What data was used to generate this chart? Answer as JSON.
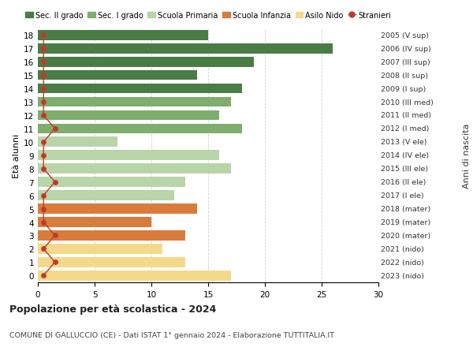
{
  "ages": [
    18,
    17,
    16,
    15,
    14,
    13,
    12,
    11,
    10,
    9,
    8,
    7,
    6,
    5,
    4,
    3,
    2,
    1,
    0
  ],
  "bar_values": [
    15,
    26,
    19,
    14,
    18,
    17,
    16,
    18,
    7,
    16,
    17,
    13,
    12,
    14,
    10,
    13,
    11,
    13,
    17
  ],
  "stranieri_values": [
    0.5,
    0.5,
    0.5,
    0.5,
    0.5,
    0.5,
    0.5,
    1.5,
    0.5,
    0.5,
    0.5,
    1.5,
    0.5,
    0.5,
    0.5,
    1.5,
    0.5,
    1.5,
    0.5
  ],
  "right_labels": [
    "2005 (V sup)",
    "2006 (IV sup)",
    "2007 (III sup)",
    "2008 (II sup)",
    "2009 (I sup)",
    "2010 (III med)",
    "2011 (II med)",
    "2012 (I med)",
    "2013 (V ele)",
    "2014 (IV ele)",
    "2015 (III ele)",
    "2016 (II ele)",
    "2017 (I ele)",
    "2018 (mater)",
    "2019 (mater)",
    "2020 (mater)",
    "2021 (nido)",
    "2022 (nido)",
    "2023 (nido)"
  ],
  "bar_colors": [
    "#4a7c45",
    "#4a7c45",
    "#4a7c45",
    "#4a7c45",
    "#4a7c45",
    "#7fad6e",
    "#7fad6e",
    "#7fad6e",
    "#b8d4a8",
    "#b8d4a8",
    "#b8d4a8",
    "#b8d4a8",
    "#b8d4a8",
    "#d97b3a",
    "#d97b3a",
    "#d97b3a",
    "#f5d98b",
    "#f5d98b",
    "#f5d98b"
  ],
  "legend_labels": [
    "Sec. II grado",
    "Sec. I grado",
    "Scuola Primaria",
    "Scuola Infanzia",
    "Asilo Nido",
    "Stranieri"
  ],
  "legend_colors": [
    "#4a7c45",
    "#7fad6e",
    "#b8d4a8",
    "#d97b3a",
    "#f5d98b",
    "#c0392b"
  ],
  "stranieri_color": "#c0392b",
  "title_main": "Popolazione per età scolastica - 2024",
  "title_sub": "COMUNE DI GALLUCCIO (CE) - Dati ISTAT 1° gennaio 2024 - Elaborazione TUTTITALIA.IT",
  "ylabel_left": "Età alunni",
  "ylabel_right": "Anni di nascita",
  "xlim": [
    0,
    30
  ],
  "xticks": [
    0,
    5,
    10,
    15,
    20,
    25,
    30
  ],
  "background_color": "#ffffff",
  "grid_color": "#cccccc"
}
